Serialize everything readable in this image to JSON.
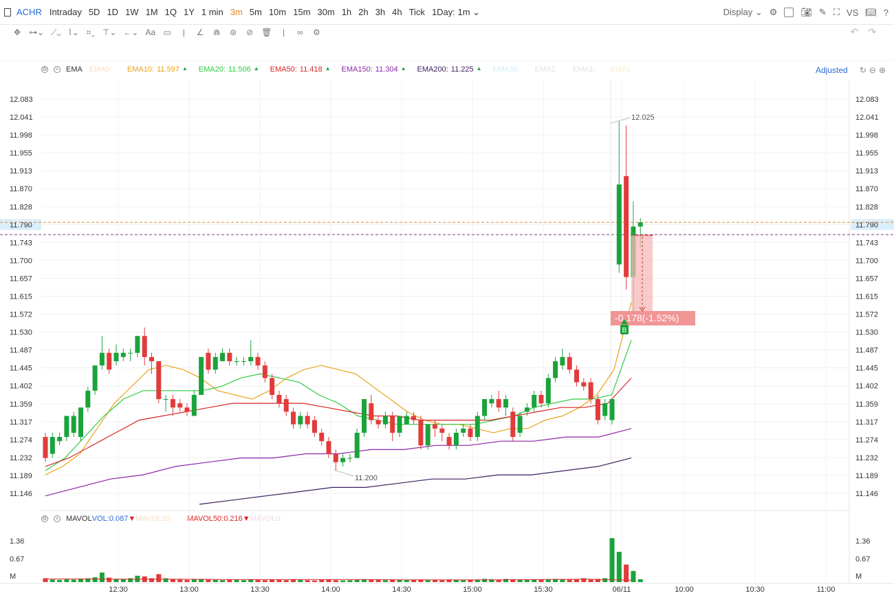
{
  "toolbar": {
    "symbol": "ACHR",
    "timeframes": [
      "Intraday",
      "5D",
      "1D",
      "1W",
      "1M",
      "1Q",
      "1Y",
      "1 min",
      "3m",
      "5m",
      "10m",
      "15m",
      "30m",
      "1h",
      "2h",
      "3h",
      "4h",
      "Tick",
      "1Day: 1m"
    ],
    "active_timeframe": "3m",
    "display_label": "Display",
    "vs_label": "VS",
    "text_tool_label": "Aa"
  },
  "legend": {
    "indicator": "EMA",
    "entries": [
      {
        "label": "EMA5:",
        "value": "",
        "color": "#f5c9a0",
        "faded": true
      },
      {
        "label": "EMA10:",
        "value": "11.597",
        "color": "#e8a317"
      },
      {
        "label": "EMA20:",
        "value": "11.506",
        "color": "#2ecc40"
      },
      {
        "label": "EMA50:",
        "value": "11.418",
        "color": "#d62728"
      },
      {
        "label": "EMA150:",
        "value": "11.304",
        "color": "#8e24aa"
      },
      {
        "label": "EMA200:",
        "value": "11.225",
        "color": "#3b1f5c"
      },
      {
        "label": "EMA30:",
        "value": "",
        "color": "#b8e0ee",
        "faded": true
      },
      {
        "label": "EMA1:",
        "value": "",
        "color": "#cccccc",
        "faded": true
      },
      {
        "label": "EMA1:",
        "value": "",
        "color": "#cccccc",
        "faded": true
      },
      {
        "label": "EMA1",
        "value": "",
        "color": "#f5dcb5",
        "faded": true
      }
    ],
    "adjusted_label": "Adjusted"
  },
  "volume_legend": {
    "indicator": "MAVOL",
    "entries": [
      {
        "label": "VOL:",
        "value": "0.087",
        "color": "#2a6ad6"
      },
      {
        "label": "MAVOL20:",
        "value": "",
        "color": "#f5c9a0",
        "faded": true
      },
      {
        "label": "MAVOL50:",
        "value": "0.216",
        "color": "#d62728"
      },
      {
        "label": "MAVOL0:",
        "value": "",
        "color": "#e8c0e0",
        "faded": true
      }
    ]
  },
  "price_axis": {
    "labels": [
      "12.083",
      "12.041",
      "11.998",
      "11.955",
      "11.913",
      "11.870",
      "11.828",
      "11.790",
      "11.743",
      "11.700",
      "11.657",
      "11.615",
      "11.572",
      "11.530",
      "11.487",
      "11.445",
      "11.402",
      "11.359",
      "11.317",
      "11.274",
      "11.232",
      "11.189",
      "11.146"
    ],
    "current_price": "11.790"
  },
  "volume_axis": {
    "labels": [
      "1.36",
      "0.67",
      "M"
    ]
  },
  "time_axis": {
    "labels": [
      "12:30",
      "13:00",
      "13:30",
      "14:00",
      "14:30",
      "15:00",
      "15:30",
      "06/11",
      "10:00",
      "10:30",
      "11:00"
    ]
  },
  "annotations": {
    "high_label": "12.025",
    "low_label": "11.200",
    "measure_label": "-0.178(-1.52%)",
    "buy_marker": "B"
  },
  "colors": {
    "up": "#1aa33b",
    "down": "#e23b3b",
    "accent": "#2a6ad6",
    "active_tf": "#e6862e"
  },
  "chart_data": {
    "type": "candlestick",
    "ylim": [
      11.12,
      12.11
    ],
    "candles": [
      [
        11.28,
        11.23,
        11.29,
        11.22
      ],
      [
        11.24,
        11.28,
        11.29,
        11.23
      ],
      [
        11.27,
        11.28,
        11.29,
        11.26
      ],
      [
        11.28,
        11.33,
        11.33,
        11.27
      ],
      [
        11.29,
        11.33,
        11.34,
        11.28
      ],
      [
        11.28,
        11.35,
        11.35,
        11.27
      ],
      [
        11.35,
        11.39,
        11.4,
        11.34
      ],
      [
        11.39,
        11.45,
        11.45,
        11.38
      ],
      [
        11.45,
        11.48,
        11.52,
        11.44
      ],
      [
        11.48,
        11.44,
        11.49,
        11.43
      ],
      [
        11.46,
        11.48,
        11.5,
        11.45
      ],
      [
        11.47,
        11.48,
        11.49,
        11.46
      ],
      [
        11.48,
        11.48,
        11.49,
        11.46
      ],
      [
        11.48,
        11.52,
        11.52,
        11.47
      ],
      [
        11.52,
        11.47,
        11.54,
        11.45
      ],
      [
        11.47,
        11.46,
        11.48,
        11.43
      ],
      [
        11.46,
        11.37,
        11.46,
        11.36
      ],
      [
        11.37,
        11.37,
        11.38,
        11.34
      ],
      [
        11.37,
        11.35,
        11.38,
        11.33
      ],
      [
        11.36,
        11.35,
        11.37,
        11.34
      ],
      [
        11.35,
        11.34,
        11.36,
        11.33
      ],
      [
        11.33,
        11.38,
        11.39,
        11.33
      ],
      [
        11.38,
        11.47,
        11.47,
        11.38
      ],
      [
        11.48,
        11.44,
        11.49,
        11.43
      ],
      [
        11.44,
        11.47,
        11.48,
        11.43
      ],
      [
        11.46,
        11.48,
        11.49,
        11.46
      ],
      [
        11.48,
        11.46,
        11.49,
        11.45
      ],
      [
        11.46,
        11.46,
        11.47,
        11.45
      ],
      [
        11.46,
        11.46,
        11.47,
        11.45
      ],
      [
        11.46,
        11.47,
        11.51,
        11.45
      ],
      [
        11.47,
        11.45,
        11.48,
        11.44
      ],
      [
        11.45,
        11.42,
        11.46,
        11.41
      ],
      [
        11.42,
        11.38,
        11.43,
        11.37
      ],
      [
        11.38,
        11.36,
        11.39,
        11.35
      ],
      [
        11.37,
        11.34,
        11.38,
        11.33
      ],
      [
        11.34,
        11.31,
        11.35,
        11.3
      ],
      [
        11.31,
        11.33,
        11.34,
        11.3
      ],
      [
        11.33,
        11.31,
        11.34,
        11.3
      ],
      [
        11.32,
        11.29,
        11.33,
        11.28
      ],
      [
        11.29,
        11.27,
        11.3,
        11.26
      ],
      [
        11.27,
        11.24,
        11.28,
        11.23
      ],
      [
        11.24,
        11.22,
        11.25,
        11.2
      ],
      [
        11.22,
        11.23,
        11.24,
        11.21
      ],
      [
        11.23,
        11.23,
        11.24,
        11.22
      ],
      [
        11.23,
        11.29,
        11.3,
        11.23
      ],
      [
        11.29,
        11.37,
        11.37,
        11.28
      ],
      [
        11.36,
        11.32,
        11.38,
        11.31
      ],
      [
        11.32,
        11.31,
        11.33,
        11.3
      ],
      [
        11.31,
        11.33,
        11.34,
        11.3
      ],
      [
        11.33,
        11.29,
        11.34,
        11.27
      ],
      [
        11.29,
        11.33,
        11.33,
        11.28
      ],
      [
        11.31,
        11.33,
        11.34,
        11.31
      ],
      [
        11.33,
        11.32,
        11.34,
        11.31
      ],
      [
        11.32,
        11.26,
        11.33,
        11.25
      ],
      [
        11.26,
        11.31,
        11.31,
        11.25
      ],
      [
        11.31,
        11.3,
        11.32,
        11.28
      ],
      [
        11.3,
        11.29,
        11.31,
        11.27
      ],
      [
        11.28,
        11.26,
        11.29,
        11.25
      ],
      [
        11.26,
        11.29,
        11.3,
        11.25
      ],
      [
        11.29,
        11.3,
        11.31,
        11.28
      ],
      [
        11.3,
        11.28,
        11.31,
        11.27
      ],
      [
        11.28,
        11.33,
        11.34,
        11.27
      ],
      [
        11.33,
        11.37,
        11.37,
        11.32
      ],
      [
        11.36,
        11.37,
        11.38,
        11.35
      ],
      [
        11.37,
        11.35,
        11.39,
        11.34
      ],
      [
        11.35,
        11.37,
        11.38,
        11.33
      ],
      [
        11.34,
        11.28,
        11.35,
        11.27
      ],
      [
        11.29,
        11.33,
        11.34,
        11.28
      ],
      [
        11.34,
        11.35,
        11.36,
        11.33
      ],
      [
        11.35,
        11.38,
        11.39,
        11.34
      ],
      [
        11.38,
        11.36,
        11.39,
        11.35
      ],
      [
        11.36,
        11.42,
        11.43,
        11.35
      ],
      [
        11.42,
        11.46,
        11.47,
        11.41
      ],
      [
        11.45,
        11.47,
        11.49,
        11.44
      ],
      [
        11.47,
        11.44,
        11.48,
        11.43
      ],
      [
        11.44,
        11.41,
        11.45,
        11.4
      ],
      [
        11.41,
        11.4,
        11.42,
        11.39
      ],
      [
        11.41,
        11.37,
        11.42,
        11.36
      ],
      [
        11.37,
        11.32,
        11.38,
        11.31
      ],
      [
        11.33,
        11.36,
        11.37,
        11.32
      ],
      [
        11.32,
        11.37,
        11.37,
        11.31
      ],
      [
        11.69,
        11.88,
        12.03,
        11.67
      ],
      [
        11.9,
        11.66,
        12.02,
        11.63
      ],
      [
        11.66,
        11.78,
        11.84,
        11.55
      ],
      [
        11.78,
        11.79,
        11.8,
        11.73
      ]
    ],
    "volumes": [
      0.12,
      0.08,
      0.07,
      0.09,
      0.08,
      0.1,
      0.12,
      0.15,
      0.3,
      0.14,
      0.1,
      0.09,
      0.12,
      0.2,
      0.18,
      0.12,
      0.25,
      0.12,
      0.1,
      0.08,
      0.07,
      0.09,
      0.1,
      0.08,
      0.07,
      0.06,
      0.08,
      0.07,
      0.06,
      0.09,
      0.07,
      0.06,
      0.08,
      0.07,
      0.06,
      0.09,
      0.07,
      0.06,
      0.05,
      0.07,
      0.08,
      0.06,
      0.05,
      0.06,
      0.07,
      0.09,
      0.08,
      0.07,
      0.06,
      0.08,
      0.07,
      0.06,
      0.07,
      0.08,
      0.06,
      0.07,
      0.06,
      0.08,
      0.07,
      0.06,
      0.07,
      0.08,
      0.1,
      0.09,
      0.08,
      0.1,
      0.09,
      0.07,
      0.08,
      0.09,
      0.08,
      0.09,
      0.1,
      0.09,
      0.08,
      0.09,
      0.12,
      0.08,
      0.1,
      0.12,
      1.38,
      0.95,
      0.55,
      0.35,
      0.09
    ],
    "ema": {
      "EMA10": [
        11.19,
        11.21,
        11.24,
        11.3,
        11.36,
        11.4,
        11.44,
        11.45,
        11.44,
        11.42,
        11.39,
        11.38,
        11.37,
        11.39,
        11.42,
        11.44,
        11.45,
        11.44,
        11.43,
        11.4,
        11.37,
        11.34,
        11.32,
        11.31,
        11.31,
        11.3,
        11.29,
        11.3,
        11.3,
        11.32,
        11.33,
        11.35,
        11.38,
        11.44,
        11.6
      ],
      "EMA20": [
        11.2,
        11.23,
        11.28,
        11.33,
        11.37,
        11.39,
        11.39,
        11.39,
        11.39,
        11.4,
        11.42,
        11.43,
        11.42,
        11.41,
        11.38,
        11.36,
        11.33,
        11.32,
        11.31,
        11.31,
        11.31,
        11.31,
        11.31,
        11.32,
        11.33,
        11.35,
        11.36,
        11.37,
        11.37,
        11.38,
        11.51
      ],
      "EMA50": [
        11.21,
        11.23,
        11.26,
        11.29,
        11.32,
        11.33,
        11.34,
        11.35,
        11.36,
        11.36,
        11.36,
        11.36,
        11.35,
        11.34,
        11.33,
        11.33,
        11.32,
        11.32,
        11.32,
        11.32,
        11.33,
        11.34,
        11.35,
        11.35,
        11.36,
        11.42
      ],
      "EMA150": [
        11.14,
        11.16,
        11.18,
        11.19,
        11.21,
        11.22,
        11.23,
        11.23,
        11.24,
        11.24,
        11.25,
        11.25,
        11.26,
        11.26,
        11.27,
        11.27,
        11.28,
        11.28,
        11.3
      ],
      "EMA200": [
        11.12,
        11.13,
        11.14,
        11.15,
        11.16,
        11.16,
        11.17,
        11.18,
        11.18,
        11.19,
        11.19,
        11.2,
        11.21,
        11.23
      ]
    },
    "mavol50": [
      0.1,
      0.1,
      0.09,
      0.09,
      0.08,
      0.08,
      0.08,
      0.08,
      0.07,
      0.07,
      0.07,
      0.08,
      0.09,
      0.06
    ]
  }
}
